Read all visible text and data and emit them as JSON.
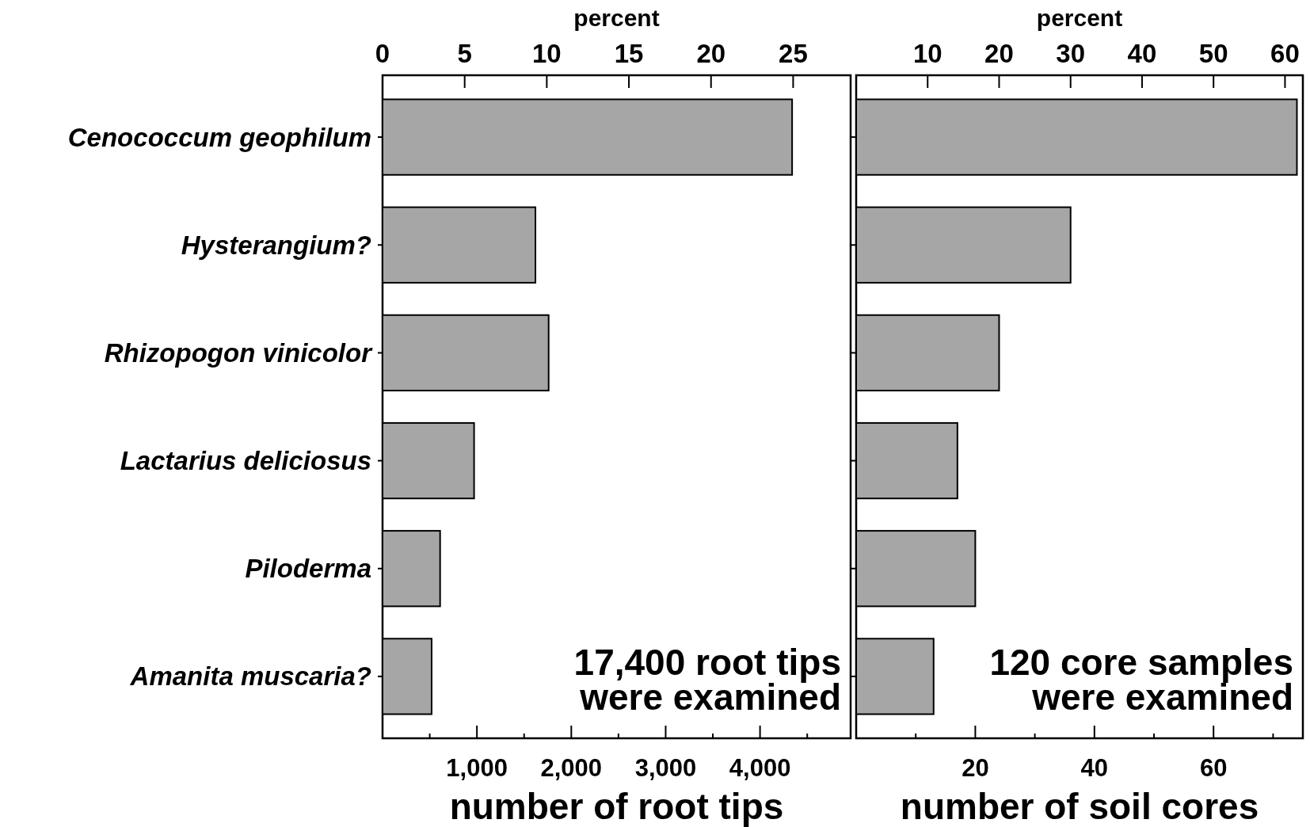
{
  "chart_data": [
    {
      "type": "bar",
      "orientation": "horizontal",
      "categories": [
        "Cenococcum geophilum",
        "Hysterangium?",
        "Rhizopogon vinicolor",
        "Lactarius deliciosus",
        "Piloderma",
        "Amanita muscaria?"
      ],
      "values": [
        4340,
        1620,
        1760,
        970,
        610,
        520
      ],
      "color": "#a6a6a6",
      "xlabel": "number of root tips",
      "x2label": "percent",
      "xlim": [
        0,
        4960
      ],
      "xticks": [
        {
          "value": 500,
          "label": null
        },
        {
          "value": 1000,
          "label": "1,000"
        },
        {
          "value": 1500,
          "label": null
        },
        {
          "value": 2000,
          "label": "2,000"
        },
        {
          "value": 2500,
          "label": null
        },
        {
          "value": 3000,
          "label": "3,000"
        },
        {
          "value": 3500,
          "label": null
        },
        {
          "value": 4000,
          "label": "4,000"
        },
        {
          "value": 4500,
          "label": null
        }
      ],
      "x2lim": [
        0,
        28.5
      ],
      "x2ticks": [
        0,
        5,
        10,
        15,
        20,
        25
      ],
      "annotations": [
        "17,400 root tips\nwere examined"
      ]
    },
    {
      "type": "bar",
      "orientation": "horizontal",
      "categories": [
        null,
        null,
        null,
        null,
        null,
        null
      ],
      "values": [
        74,
        36,
        24,
        17,
        20,
        13
      ],
      "color": "#a6a6a6",
      "xlabel": "number of soil cores",
      "x2label": "percent",
      "xlim": [
        0,
        75
      ],
      "xticks": [
        {
          "value": 10,
          "label": null
        },
        20,
        {
          "value": 30,
          "label": null
        },
        40,
        {
          "value": 50,
          "label": null
        },
        60,
        {
          "value": 70,
          "label": null
        }
      ],
      "x2lim": [
        0,
        62.5
      ],
      "x2ticks": [
        10,
        20,
        30,
        40,
        50,
        60
      ],
      "annotations": [
        "120 core samples\nwere examined"
      ]
    }
  ]
}
